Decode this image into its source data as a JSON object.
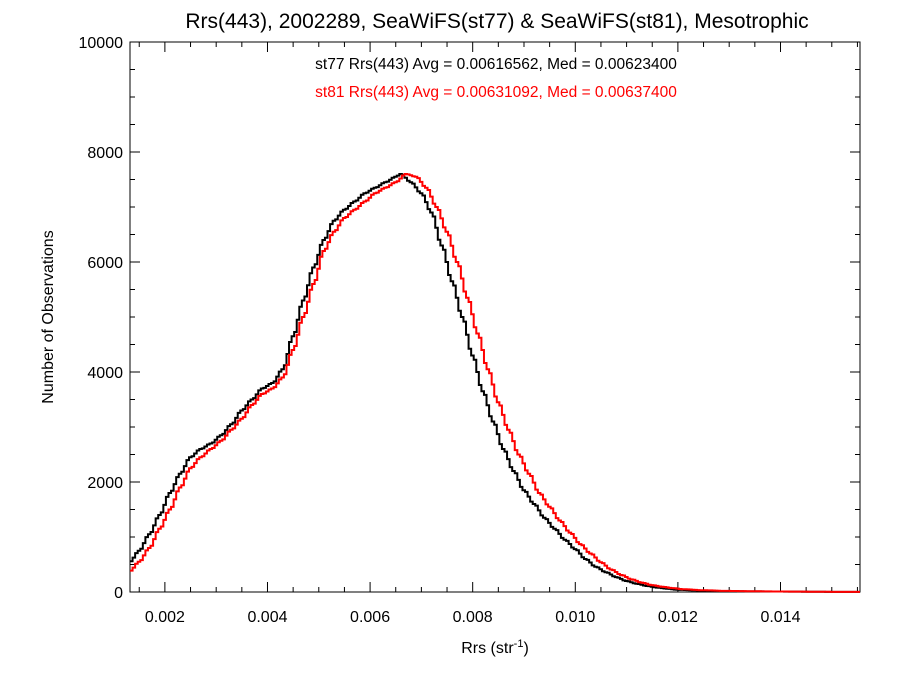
{
  "chart_data": {
    "type": "histogram",
    "title": "Rrs(443), 2002289, SeaWiFS(st77) & SeaWiFS(st81), Mesotrophic",
    "xlabel": {
      "main": "Rrs (str",
      "sup": "-1",
      "close": ")"
    },
    "ylabel": "Number of Observations",
    "xlim": [
      0.00132,
      0.01555
    ],
    "ylim": [
      0,
      10000
    ],
    "xticks": [
      0.002,
      0.004,
      0.006,
      0.008,
      0.01,
      0.012,
      0.014
    ],
    "xtick_labels": [
      "0.002",
      "0.004",
      "0.006",
      "0.008",
      "0.010",
      "0.012",
      "0.014"
    ],
    "x_minor_step": 0.0005,
    "yticks": [
      0,
      2000,
      4000,
      6000,
      8000,
      10000
    ],
    "ytick_labels": [
      "0",
      "2000",
      "4000",
      "6000",
      "8000",
      "10000"
    ],
    "y_minor_step": 500,
    "bin_width": 5e-05,
    "grid": false,
    "annotations": [
      {
        "text": "st77 Rrs(443) Avg = 0.00616562, Med = 0.00623400",
        "color": "#000000"
      },
      {
        "text": "st81 Rrs(443) Avg = 0.00631092, Med = 0.00637400",
        "color": "#ff0000"
      }
    ],
    "series": [
      {
        "name": "st77",
        "color": "#000000",
        "points": [
          [
            0.00132,
            550
          ],
          [
            0.0015,
            750
          ],
          [
            0.0017,
            1050
          ],
          [
            0.0019,
            1400
          ],
          [
            0.0021,
            1800
          ],
          [
            0.0023,
            2150
          ],
          [
            0.0025,
            2450
          ],
          [
            0.0027,
            2600
          ],
          [
            0.0029,
            2700
          ],
          [
            0.0031,
            2850
          ],
          [
            0.0033,
            3050
          ],
          [
            0.0035,
            3300
          ],
          [
            0.0037,
            3500
          ],
          [
            0.0039,
            3700
          ],
          [
            0.0041,
            3800
          ],
          [
            0.0043,
            4050
          ],
          [
            0.0045,
            4650
          ],
          [
            0.0047,
            5300
          ],
          [
            0.0049,
            5900
          ],
          [
            0.0051,
            6400
          ],
          [
            0.0053,
            6750
          ],
          [
            0.0055,
            6950
          ],
          [
            0.0057,
            7100
          ],
          [
            0.0059,
            7250
          ],
          [
            0.0061,
            7350
          ],
          [
            0.0063,
            7450
          ],
          [
            0.0065,
            7550
          ],
          [
            0.0066,
            7600
          ],
          [
            0.0068,
            7450
          ],
          [
            0.007,
            7250
          ],
          [
            0.0072,
            6900
          ],
          [
            0.0074,
            6300
          ],
          [
            0.0076,
            5650
          ],
          [
            0.0078,
            5000
          ],
          [
            0.008,
            4300
          ],
          [
            0.0082,
            3650
          ],
          [
            0.0084,
            3100
          ],
          [
            0.0086,
            2600
          ],
          [
            0.0088,
            2200
          ],
          [
            0.009,
            1850
          ],
          [
            0.0092,
            1600
          ],
          [
            0.0094,
            1350
          ],
          [
            0.0096,
            1150
          ],
          [
            0.0098,
            950
          ],
          [
            0.01,
            780
          ],
          [
            0.0102,
            600
          ],
          [
            0.0104,
            460
          ],
          [
            0.0106,
            360
          ],
          [
            0.0108,
            270
          ],
          [
            0.011,
            200
          ],
          [
            0.0112,
            150
          ],
          [
            0.0114,
            110
          ],
          [
            0.0116,
            80
          ],
          [
            0.0118,
            60
          ],
          [
            0.012,
            40
          ],
          [
            0.0124,
            28
          ],
          [
            0.0128,
            18
          ],
          [
            0.0134,
            12
          ],
          [
            0.014,
            8
          ],
          [
            0.0146,
            5
          ],
          [
            0.015,
            3
          ],
          [
            0.01555,
            2
          ]
        ]
      },
      {
        "name": "st81",
        "color": "#ff0000",
        "points": [
          [
            0.00132,
            380
          ],
          [
            0.0015,
            550
          ],
          [
            0.0017,
            800
          ],
          [
            0.0019,
            1150
          ],
          [
            0.0021,
            1500
          ],
          [
            0.0023,
            1900
          ],
          [
            0.0025,
            2250
          ],
          [
            0.0027,
            2450
          ],
          [
            0.0029,
            2600
          ],
          [
            0.0031,
            2750
          ],
          [
            0.0033,
            2950
          ],
          [
            0.0035,
            3150
          ],
          [
            0.0037,
            3400
          ],
          [
            0.0039,
            3600
          ],
          [
            0.0041,
            3700
          ],
          [
            0.0043,
            3900
          ],
          [
            0.0045,
            4400
          ],
          [
            0.0047,
            5000
          ],
          [
            0.0049,
            5600
          ],
          [
            0.0051,
            6200
          ],
          [
            0.0053,
            6550
          ],
          [
            0.0055,
            6800
          ],
          [
            0.0057,
            6950
          ],
          [
            0.0059,
            7100
          ],
          [
            0.0061,
            7250
          ],
          [
            0.0063,
            7350
          ],
          [
            0.0065,
            7450
          ],
          [
            0.0067,
            7600
          ],
          [
            0.0069,
            7550
          ],
          [
            0.0071,
            7350
          ],
          [
            0.0073,
            7000
          ],
          [
            0.0075,
            6550
          ],
          [
            0.0077,
            6000
          ],
          [
            0.0079,
            5350
          ],
          [
            0.0081,
            4700
          ],
          [
            0.0083,
            4050
          ],
          [
            0.0085,
            3450
          ],
          [
            0.0087,
            2950
          ],
          [
            0.0089,
            2500
          ],
          [
            0.0091,
            2150
          ],
          [
            0.0093,
            1800
          ],
          [
            0.0095,
            1550
          ],
          [
            0.0097,
            1300
          ],
          [
            0.0099,
            1080
          ],
          [
            0.0101,
            870
          ],
          [
            0.0103,
            700
          ],
          [
            0.0105,
            540
          ],
          [
            0.0107,
            410
          ],
          [
            0.0109,
            310
          ],
          [
            0.0111,
            230
          ],
          [
            0.0113,
            170
          ],
          [
            0.0115,
            125
          ],
          [
            0.0117,
            95
          ],
          [
            0.0119,
            70
          ],
          [
            0.0121,
            50
          ],
          [
            0.0125,
            32
          ],
          [
            0.0129,
            20
          ],
          [
            0.0135,
            13
          ],
          [
            0.0141,
            8
          ],
          [
            0.0147,
            5
          ],
          [
            0.0151,
            3
          ],
          [
            0.01555,
            2
          ]
        ]
      }
    ]
  }
}
